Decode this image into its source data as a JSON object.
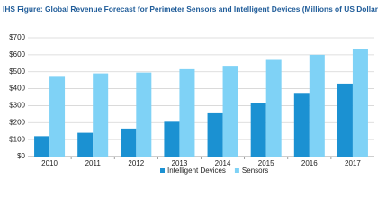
{
  "chart_data": {
    "type": "bar",
    "title": "IHS Figure: Global Revenue Forecast for Perimeter Sensors and Intelligent Devices (Millions of US Dollars)",
    "categories": [
      "2010",
      "2011",
      "2012",
      "2013",
      "2014",
      "2015",
      "2016",
      "2017"
    ],
    "series": [
      {
        "name": "Intelligent Devices",
        "color": "#1b91d2",
        "values": [
          120,
          140,
          165,
          205,
          255,
          315,
          375,
          430
        ]
      },
      {
        "name": "Sensors",
        "color": "#7fd2f6",
        "values": [
          470,
          490,
          495,
          515,
          535,
          570,
          600,
          635
        ]
      }
    ],
    "ylim": [
      0,
      700
    ],
    "yticks": [
      {
        "value": 0,
        "label": "$0"
      },
      {
        "value": 100,
        "label": "$100"
      },
      {
        "value": 200,
        "label": "$200"
      },
      {
        "value": 300,
        "label": "$300"
      },
      {
        "value": 400,
        "label": "$400"
      },
      {
        "value": 500,
        "label": "$500"
      },
      {
        "value": 600,
        "label": "$600"
      },
      {
        "value": 700,
        "label": "$700"
      }
    ],
    "grid": true
  }
}
